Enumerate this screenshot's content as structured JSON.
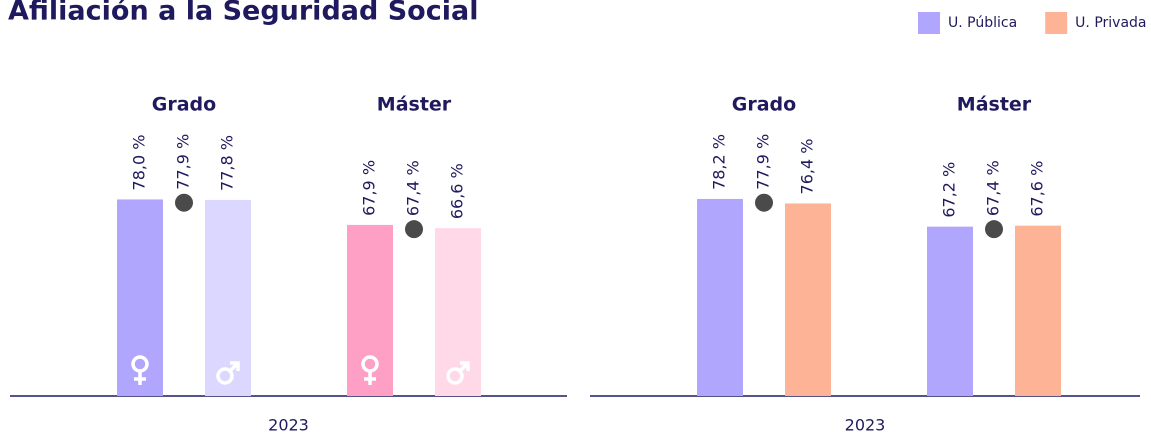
{
  "title": "Afiliación a la Seguridad Social",
  "legend_position": "top-right",
  "chart_data": [
    {
      "type": "bar",
      "categories": [
        "Grado",
        "Máster"
      ],
      "x_label": "2023",
      "ylim": [
        0,
        100
      ],
      "series": [
        {
          "colors": [
            "#b0a6fe",
            "#fe9fc5"
          ],
          "symbol": "female",
          "values": [
            78.0,
            67.9
          ],
          "value_labels": [
            "78,0 %",
            "67,9 %"
          ]
        },
        {
          "type": "dot",
          "color": "#4a4a4a",
          "values": [
            77.9,
            67.4
          ],
          "value_labels": [
            "77,9 %",
            "67,4 %"
          ]
        },
        {
          "colors": [
            "#dcd7ff",
            "#ffd9e8"
          ],
          "symbol": "male",
          "values": [
            77.8,
            66.6
          ],
          "value_labels": [
            "77,8 %",
            "66,6 %"
          ]
        }
      ]
    },
    {
      "type": "bar",
      "categories": [
        "Grado",
        "Máster"
      ],
      "x_label": "2023",
      "ylim": [
        0,
        100
      ],
      "series": [
        {
          "name": "U. Pública",
          "color": "#b0a6fe",
          "values": [
            78.2,
            67.2
          ],
          "value_labels": [
            "78,2 %",
            "67,2 %"
          ]
        },
        {
          "type": "dot",
          "color": "#4a4a4a",
          "values": [
            77.9,
            67.4
          ],
          "value_labels": [
            "77,9 %",
            "67,4 %"
          ]
        },
        {
          "name": "U. Privada",
          "color": "#fdb396",
          "values": [
            76.4,
            67.6
          ],
          "value_labels": [
            "76,4 %",
            "67,6 %"
          ]
        }
      ]
    }
  ]
}
